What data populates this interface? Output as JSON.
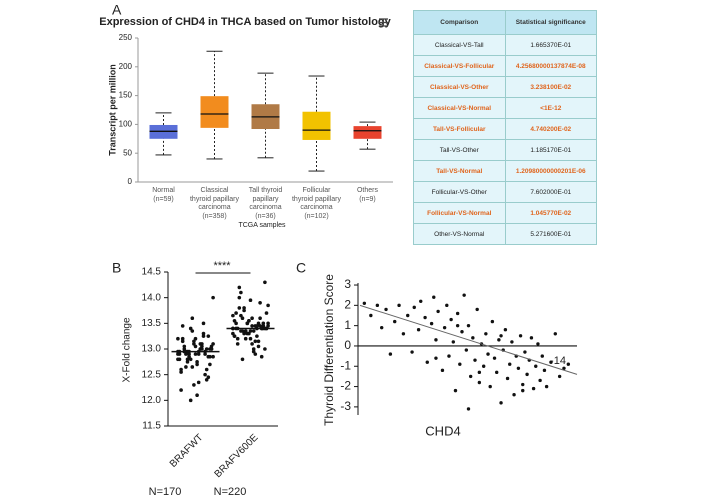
{
  "panel_labels": [
    "A",
    "B",
    "C"
  ],
  "table": {
    "header": [
      "Comparison",
      "Statistical significance"
    ],
    "rows": [
      [
        "Classical-VS-Tall",
        "1.665370E-01"
      ],
      [
        "Classical-VS-Follicular",
        "4.25680000137874E-08"
      ],
      [
        "Classical-VS-Other",
        "3.238100E-02"
      ],
      [
        "Classical-VS-Normal",
        "<1E-12"
      ],
      [
        "Tall-VS-Follicular",
        "4.740200E-02"
      ],
      [
        "Tall-VS-Other",
        "1.185170E-01"
      ],
      [
        "Tall-VS-Normal",
        "1.20980000000201E-06"
      ],
      [
        "Follicular-VS-Other",
        "7.602000E-01"
      ],
      [
        "Follicular-VS-Normal",
        "1.045770E-02"
      ],
      [
        "Other-VS-Normal",
        "5.271600E-01"
      ]
    ],
    "row_colors": [
      "#222222",
      "#e0641c",
      "#e0641c",
      "#e0641c",
      "#e0641c",
      "#222222",
      "#e0641c",
      "#222222",
      "#e0641c",
      "#222222"
    ]
  },
  "chart_data": [
    {
      "type": "box",
      "title": "Expression of CHD4 in THCA based on Tumor histology",
      "y_label": "Transcript per million",
      "x_label": "TCGA samples",
      "categories": [
        "Normal\n(n=59)",
        "Classical\nthyroid papillary\ncarcinoma\n(n=358)",
        "Tall thyroid\npapillary\ncarcinoma\n(n=36)",
        "Follicular\nthyroid papillary\ncarcinoma\n(n=102)",
        "Others\n(n=9)"
      ],
      "boxes": [
        {
          "whislo": 47,
          "q1": 75,
          "med": 88,
          "q3": 99,
          "whishi": 120
        },
        {
          "whislo": 40,
          "q1": 94,
          "med": 118,
          "q3": 149,
          "whishi": 227
        },
        {
          "whislo": 42,
          "q1": 92,
          "med": 113,
          "q3": 135,
          "whishi": 189
        },
        {
          "whislo": 19,
          "q1": 73,
          "med": 90,
          "q3": 122,
          "whishi": 184
        },
        {
          "whislo": 57,
          "q1": 75,
          "med": 89,
          "q3": 97,
          "whishi": 104
        }
      ],
      "colors": [
        "#5a6fd8",
        "#f28c1e",
        "#b07a46",
        "#f2c200",
        "#e8432e"
      ],
      "ylim": [
        0,
        250
      ],
      "yticks": [
        0,
        50,
        100,
        150,
        200,
        250
      ]
    },
    {
      "type": "strip",
      "y_label": "X-Fold change",
      "categories": [
        "BRAFWT",
        "BRAFV600E"
      ],
      "n_labels": [
        "N=170",
        "N=220"
      ],
      "significance": "****",
      "color": "#111111",
      "series": [
        {
          "values": [
            12.95,
            13.0,
            12.9,
            12.85,
            13.1,
            12.8,
            13.05,
            12.95,
            12.7,
            13.2,
            12.6,
            13.3,
            12.9,
            13.0,
            12.75,
            13.15,
            12.5,
            13.4,
            12.85,
            12.95,
            13.05,
            12.4,
            13.6,
            12.9,
            13.0,
            12.65,
            13.25,
            12.3,
            12.95,
            13.1,
            12.8,
            13.0,
            12.9,
            12.2,
            13.5,
            12.85,
            13.05,
            12.7,
            13.2,
            12.95,
            12.0,
            14.0,
            12.9,
            13.0,
            12.6,
            13.35,
            12.8,
            13.1,
            12.95,
            12.45,
            13.15,
            12.9,
            13.0,
            12.75,
            12.85,
            13.05,
            12.55,
            13.25,
            12.95,
            13.0,
            12.1,
            13.45,
            12.9,
            12.8,
            13.1,
            12.35,
            12.95,
            13.0,
            12.65,
            13.2
          ]
        },
        {
          "values": [
            13.4,
            13.45,
            13.35,
            13.5,
            13.3,
            13.55,
            13.25,
            13.6,
            13.4,
            13.2,
            13.7,
            13.15,
            13.8,
            13.4,
            13.45,
            13.1,
            13.9,
            13.35,
            13.5,
            13.0,
            14.0,
            13.4,
            13.3,
            13.65,
            12.9,
            14.1,
            13.45,
            13.55,
            13.25,
            13.4,
            12.8,
            14.3,
            13.35,
            13.5,
            13.05,
            13.75,
            13.4,
            13.6,
            13.2,
            13.45,
            13.35,
            13.85,
            12.95,
            14.2,
            13.4,
            13.5,
            13.3,
            13.15,
            13.65,
            13.4,
            13.55,
            13.25,
            13.45,
            13.35,
            13.0,
            13.95,
            13.4,
            13.5,
            13.3,
            13.7,
            13.1,
            13.4,
            13.6,
            13.2,
            13.45,
            13.35,
            13.8,
            12.85,
            13.5,
            13.4
          ]
        }
      ],
      "means": [
        12.95,
        13.4
      ],
      "ylim": [
        11.5,
        14.5
      ],
      "yticks": [
        11.5,
        {
          "value": 12,
          "label": "12.0"
        },
        12.5,
        {
          "value": 13,
          "label": "13.0"
        },
        13.5,
        {
          "value": 14,
          "label": "14.0"
        },
        14.5
      ]
    },
    {
      "type": "scatter",
      "y_label": "Thyroid Differentiation Score",
      "x_label": "CHD4",
      "annotation": "-14",
      "color": "#111111",
      "zero_line": true,
      "x": [
        2,
        5,
        8,
        10,
        12,
        14,
        16,
        18,
        20,
        22,
        24,
        25,
        27,
        28,
        30,
        31,
        33,
        34,
        35,
        36,
        38,
        39,
        40,
        41,
        42,
        43,
        44,
        45,
        46,
        47,
        48,
        49,
        50,
        51,
        52,
        53,
        54,
        55,
        56,
        57,
        58,
        59,
        60,
        61,
        62,
        63,
        64,
        65,
        66,
        67,
        68,
        69,
        70,
        71,
        72,
        73,
        74,
        75,
        76,
        77,
        78,
        79,
        80,
        81,
        82,
        83,
        84,
        85,
        86,
        88,
        90,
        92,
        94,
        96,
        35,
        45,
        55,
        65,
        75,
        50
      ],
      "y": [
        2.1,
        1.5,
        2.0,
        0.9,
        1.8,
        -0.4,
        1.2,
        2.0,
        0.6,
        1.5,
        -0.3,
        1.9,
        0.8,
        2.2,
        1.4,
        -0.8,
        1.1,
        2.4,
        0.3,
        1.7,
        -1.2,
        0.9,
        2.0,
        -0.5,
        1.3,
        0.2,
        -2.2,
        1.6,
        -0.9,
        0.7,
        2.5,
        -0.2,
        1.0,
        -1.5,
        0.4,
        -0.7,
        1.8,
        -1.8,
        0.1,
        -1.0,
        0.6,
        -0.4,
        -2.0,
        1.2,
        -0.6,
        -1.3,
        0.3,
        -2.8,
        -0.2,
        0.8,
        -1.6,
        -0.9,
        0.2,
        -2.4,
        -0.5,
        -1.1,
        0.5,
        -1.9,
        -0.3,
        -1.4,
        -0.7,
        0.4,
        -2.1,
        -1.0,
        0.1,
        -1.7,
        -0.5,
        -1.2,
        -2.0,
        -0.8,
        0.6,
        -1.5,
        -1.1,
        -0.9,
        -0.6,
        1.0,
        -1.3,
        0.5,
        -2.2,
        -3.1
      ],
      "trend": {
        "x": [
          0,
          100
        ],
        "y": [
          2.0,
          -1.4
        ]
      },
      "xlim": [
        0,
        100
      ],
      "ylim": [
        -3.4,
        3.1
      ],
      "yticks": [
        -3,
        -2,
        -1,
        0,
        1,
        2,
        3
      ]
    }
  ]
}
